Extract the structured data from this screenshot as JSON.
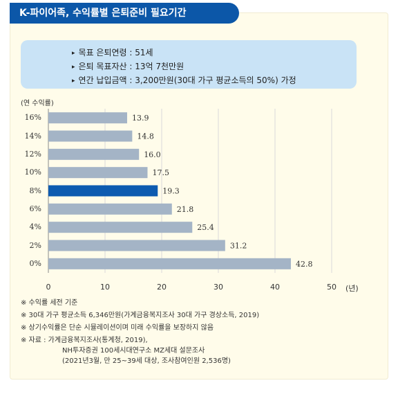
{
  "header": {
    "title": "K-파이어족, 수익률별 은퇴준비 필요기간"
  },
  "info": {
    "lines": [
      "목표 은퇴연령 : 51세",
      "은퇴 목표자산 : 13억 7천만원",
      "연간 납입금액 : 3,200만원(30대 가구 평균소득의 50%) 가정"
    ]
  },
  "chart_data": {
    "type": "bar",
    "orientation": "horizontal",
    "title": "",
    "ylabel": "(연 수익률)",
    "xlabel": "(년)",
    "categories": [
      "16%",
      "14%",
      "12%",
      "10%",
      "8%",
      "6%",
      "4%",
      "2%",
      "0%"
    ],
    "values": [
      13.9,
      14.8,
      16.0,
      17.5,
      19.3,
      21.8,
      25.4,
      31.2,
      42.8
    ],
    "value_labels": [
      "13.9",
      "14.8",
      "16.0",
      "17.5",
      "19.3",
      "21.8",
      "25.4",
      "31.2",
      "42.8"
    ],
    "highlight": "8%",
    "xlim": [
      0,
      50
    ],
    "xticks": [
      0,
      10,
      20,
      30,
      40,
      50
    ],
    "grid": true,
    "colors": {
      "bar": "#a4b4c6",
      "highlight": "#0d5bb0",
      "grid": "#d9d9d9"
    }
  },
  "notes": [
    "※ 수익률 세전 기준",
    "※ 30대 가구 평균소득 6,346만원(가계금융복지조사 30대 가구 경상소득, 2019)",
    "※ 상기수익률은 단순 시뮬레이션이며 미래 수익률을 보장하지 않음"
  ],
  "sources": {
    "lead": "※ 자료 : 가계금융복지조사(통계청, 2019),",
    "lines": [
      "NH투자증권 100세시대연구소 MZ세대 설문조사",
      "(2021년3월, 만 25~39세 대상, 조사참여인원 2,536명)"
    ]
  }
}
